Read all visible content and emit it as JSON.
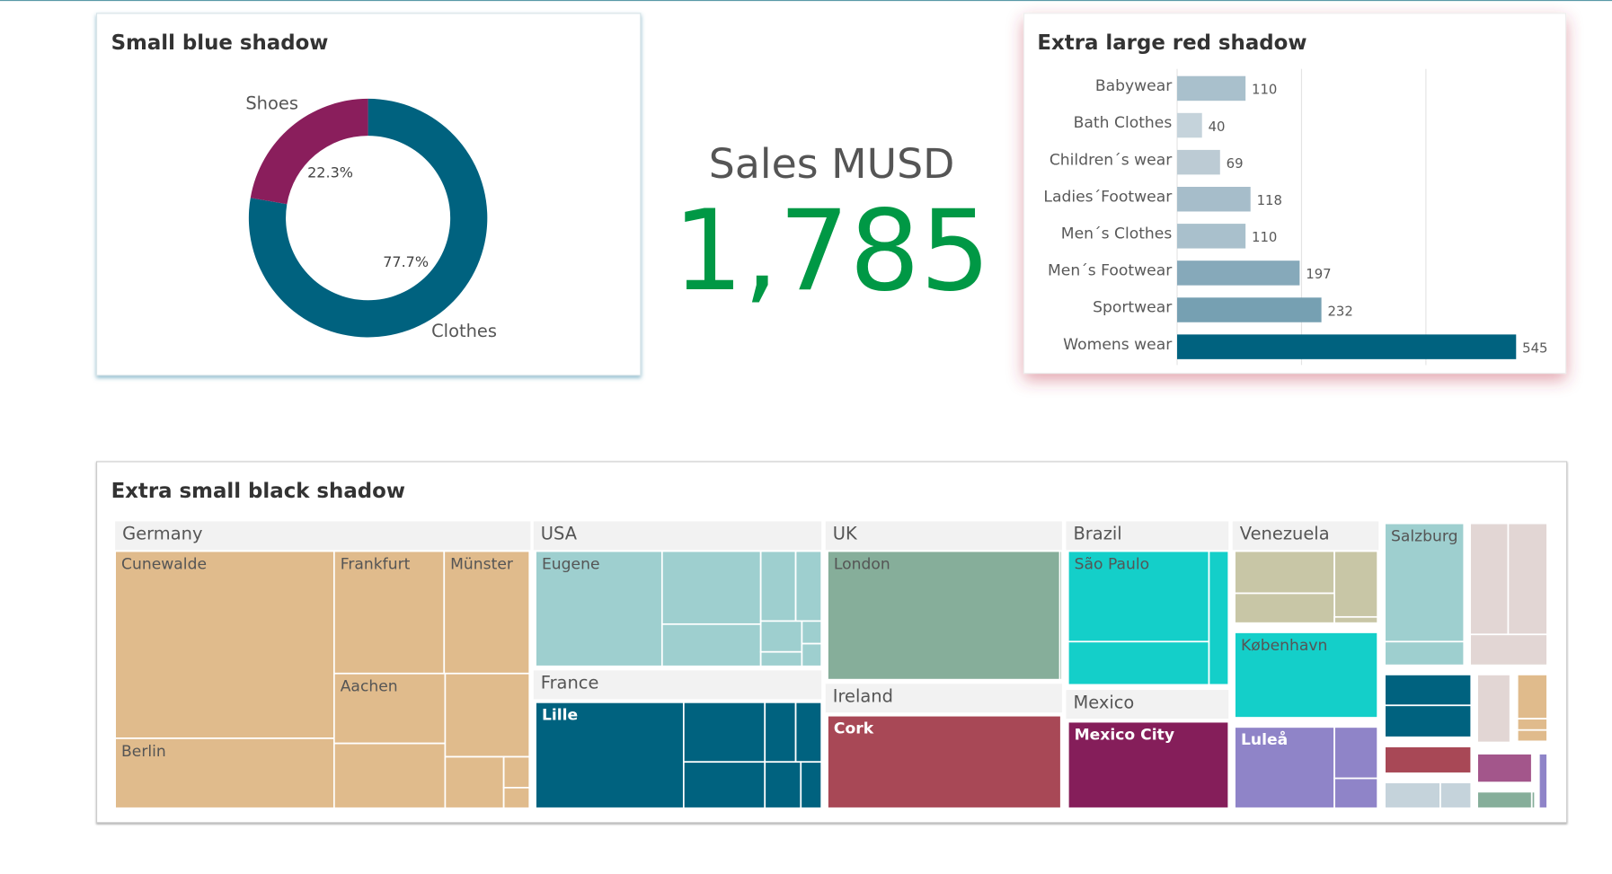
{
  "chart_data": [
    {
      "type": "pie",
      "title": "Small blue shadow",
      "categories": [
        "Clothes",
        "Shoes"
      ],
      "values": [
        77.7,
        22.3
      ],
      "value_labels": [
        "77.7%",
        "22.3%"
      ],
      "colors": [
        "#00627f",
        "#8a1e5c"
      ]
    },
    {
      "type": "bar",
      "orientation": "horizontal",
      "title": "Extra large red shadow",
      "categories": [
        "Babywear",
        "Bath Clothes",
        "Children´s wear",
        "Ladies´Footwear",
        "Men´s Clothes",
        "Men´s Footwear",
        "Sportwear",
        "Womens wear"
      ],
      "values": [
        110,
        40,
        69,
        118,
        110,
        197,
        232,
        545
      ],
      "colors": [
        "#a9c0cc",
        "#c5d3db",
        "#bccbd4",
        "#a6bdca",
        "#a9c0cc",
        "#86a9ba",
        "#76a0b2",
        "#00627f"
      ],
      "xlim": [
        0,
        600
      ],
      "xticks": [
        0,
        200,
        400
      ],
      "grid": true
    }
  ],
  "kpi": {
    "label": "Sales MUSD",
    "value": 1785,
    "value_label": "1,785"
  },
  "treemap": {
    "title": "Extra small black shadow",
    "headers": [
      "Germany",
      "USA",
      "France",
      "UK",
      "Ireland",
      "Brazil",
      "Mexico",
      "Venezuela"
    ],
    "labels": [
      "Cunewalde",
      "Frankfurt",
      "Münster",
      "Aachen",
      "Berlin",
      "Eugene",
      "Lille",
      "London",
      "Cork",
      "São Paulo",
      "Mexico City",
      "København",
      "Luleå",
      "Salzburg"
    ]
  }
}
